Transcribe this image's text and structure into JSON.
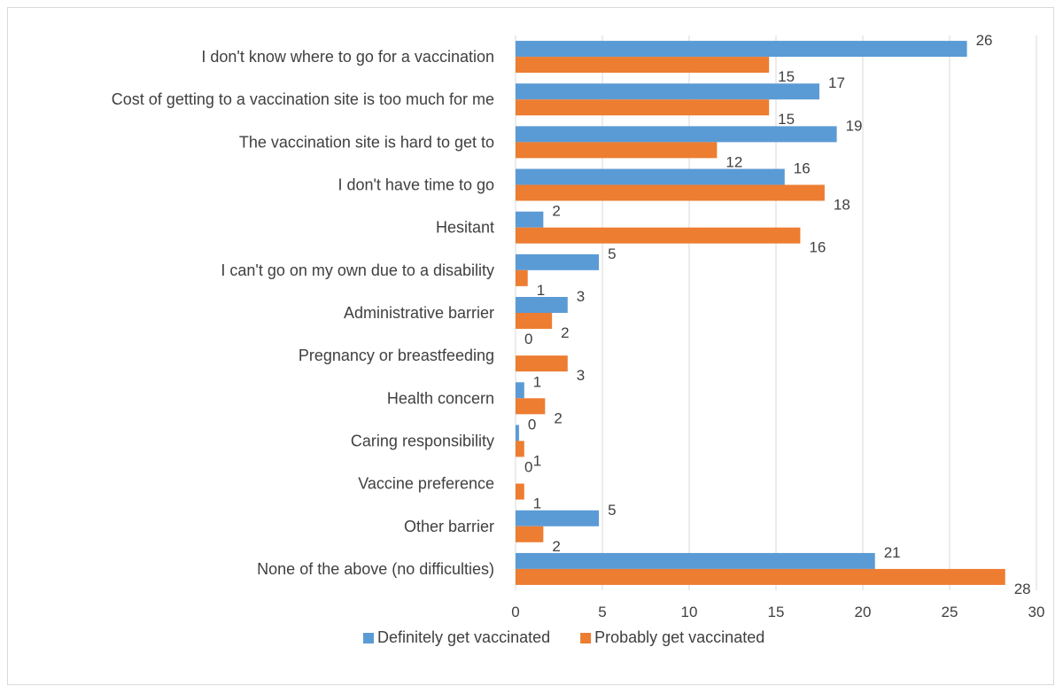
{
  "chart_data": {
    "type": "bar",
    "orientation": "horizontal",
    "categories": [
      "I don't know where to go for a vaccination",
      "Cost of getting to a vaccination site is too much for me",
      "The vaccination site is hard to get to",
      "I don't have time to go",
      "Hesitant",
      "I can't go on my own due to a disability",
      "Administrative barrier",
      "Pregnancy or breastfeeding",
      "Health concern",
      "Caring responsibility",
      "Vaccine preference",
      "Other barrier",
      "None of the above (no difficulties)"
    ],
    "series": [
      {
        "name": "Definitely get vaccinated",
        "color": "#5B9BD5",
        "values": [
          26,
          17.5,
          18.5,
          15.5,
          1.6,
          4.8,
          3,
          0,
          0.5,
          0.2,
          0,
          4.8,
          20.7
        ],
        "labels": [
          "26",
          "17",
          "19",
          "16",
          "2",
          "5",
          "3",
          "0",
          "1",
          "0",
          "0",
          "5",
          "21"
        ]
      },
      {
        "name": "Probably get vaccinated",
        "color": "#ED7D31",
        "values": [
          14.6,
          14.6,
          11.6,
          17.8,
          16.4,
          0.7,
          2.1,
          3,
          1.7,
          0.5,
          0.5,
          1.6,
          28.2
        ],
        "labels": [
          "15",
          "15",
          "12",
          "18",
          "16",
          "1",
          "2",
          "3",
          "2",
          "1",
          "1",
          "2",
          "28"
        ]
      }
    ],
    "xlim": [
      0,
      30
    ],
    "xticks": [
      "0",
      "5",
      "10",
      "15",
      "20",
      "25",
      "30"
    ],
    "grid": true,
    "legend_position": "bottom",
    "title": "",
    "xlabel": "",
    "ylabel": ""
  }
}
